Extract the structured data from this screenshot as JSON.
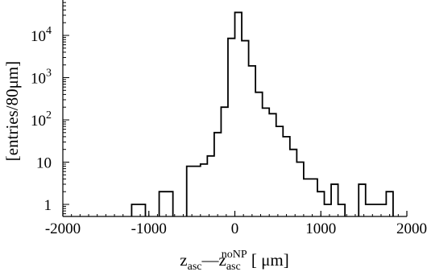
{
  "chart_data": {
    "type": "histogram",
    "y_scale": "log",
    "xlim": [
      -2000,
      2000
    ],
    "ylim": [
      0.6,
      80000
    ],
    "bin_width": 80,
    "xticks": [
      -2000,
      -1000,
      0,
      1000,
      2000
    ],
    "xtick_labels": [
      "-2000",
      "-1000",
      "0",
      "1000",
      "2000"
    ],
    "yticks": [
      1,
      10,
      100,
      1000,
      10000
    ],
    "ytick_labels": [
      {
        "base": "1",
        "exp": ""
      },
      {
        "base": "10",
        "exp": ""
      },
      {
        "base": "10",
        "exp": "2"
      },
      {
        "base": "10",
        "exp": "3"
      },
      {
        "base": "10",
        "exp": "4"
      }
    ],
    "ylabel": "[entries/80μm]",
    "xlabel": {
      "z_base": "z",
      "z_sub": "asc",
      "dash": "—",
      "z2_base": "z",
      "z2_sub": "asc",
      "z2_sup": "noNP",
      "unit": " [ μm]"
    },
    "bins": [
      {
        "x0": -1200,
        "x1": -1040,
        "count": 1
      },
      {
        "x0": -880,
        "x1": -720,
        "count": 2
      },
      {
        "x0": -560,
        "x1": -400,
        "count": 8
      },
      {
        "x0": -400,
        "x1": -320,
        "count": 9
      },
      {
        "x0": -320,
        "x1": -240,
        "count": 14
      },
      {
        "x0": -240,
        "x1": -160,
        "count": 50
      },
      {
        "x0": -160,
        "x1": -80,
        "count": 200
      },
      {
        "x0": -80,
        "x1": 0,
        "count": 8500
      },
      {
        "x0": 0,
        "x1": 80,
        "count": 35000
      },
      {
        "x0": 80,
        "x1": 160,
        "count": 7500
      },
      {
        "x0": 160,
        "x1": 240,
        "count": 1900
      },
      {
        "x0": 240,
        "x1": 320,
        "count": 450
      },
      {
        "x0": 320,
        "x1": 400,
        "count": 190
      },
      {
        "x0": 400,
        "x1": 480,
        "count": 140
      },
      {
        "x0": 480,
        "x1": 560,
        "count": 70
      },
      {
        "x0": 560,
        "x1": 640,
        "count": 40
      },
      {
        "x0": 640,
        "x1": 720,
        "count": 20
      },
      {
        "x0": 720,
        "x1": 800,
        "count": 10
      },
      {
        "x0": 800,
        "x1": 960,
        "count": 4
      },
      {
        "x0": 960,
        "x1": 1040,
        "count": 2
      },
      {
        "x0": 1040,
        "x1": 1120,
        "count": 1
      },
      {
        "x0": 1120,
        "x1": 1200,
        "count": 3
      },
      {
        "x0": 1200,
        "x1": 1280,
        "count": 1
      },
      {
        "x0": 1440,
        "x1": 1520,
        "count": 3
      },
      {
        "x0": 1520,
        "x1": 1600,
        "count": 1
      },
      {
        "x0": 1600,
        "x1": 1760,
        "count": 1
      },
      {
        "x0": 1760,
        "x1": 1840,
        "count": 2
      }
    ]
  }
}
